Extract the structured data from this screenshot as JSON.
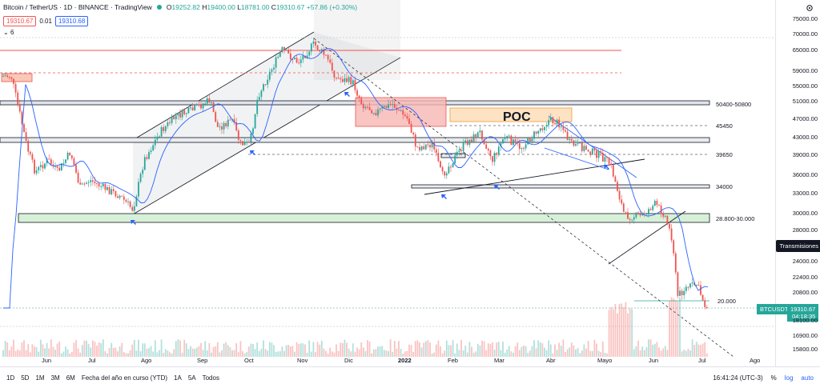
{
  "header": {
    "title": "Bitcoin / TetherUS · 1D · BINANCE · TradingView",
    "open_label": "O",
    "open": "19252.82",
    "high_label": "H",
    "high": "19400.00",
    "low_label": "L",
    "low": "18781.00",
    "close_label": "C",
    "close": "19310.67",
    "change": "+57.86 (+0.30%)"
  },
  "trade": {
    "sell_price": "19310.67",
    "spread": "0.01",
    "buy_price": "19310.68"
  },
  "indicator_toggle": "6",
  "price_axis": {
    "ticks": [
      "75000.00",
      "70000.00",
      "65000.00",
      "59000.00",
      "55000.00",
      "51000.00",
      "47000.00",
      "43000.00",
      "39000.00",
      "36000.00",
      "33000.00",
      "30000.00",
      "28000.00",
      "24000.00",
      "22400.00",
      "20800.00",
      "18100.00",
      "16900.00",
      "15800.00"
    ],
    "symbol_tag": "BTCUSDT",
    "last_price": "19310.67",
    "countdown": "04:18:35",
    "hover_tag": "Transmisiones"
  },
  "time_axis": [
    "Jun",
    "Jul",
    "Ago",
    "Sep",
    "Oct",
    "Nov",
    "Dic",
    "2022",
    "Feb",
    "Mar",
    "Abr",
    "Mayo",
    "Jun",
    "Jul",
    "Ago",
    "Sep"
  ],
  "annotations": {
    "levels": [
      "50400-50800",
      "45450",
      "39650",
      "34000",
      "28.800-30.000",
      "20.000"
    ],
    "poc": "POC"
  },
  "ranges": [
    "1D",
    "5D",
    "1M",
    "3M",
    "6M",
    "Fecha del año en curso (YTD)",
    "1A",
    "5A",
    "Todos"
  ],
  "bottom_right": {
    "clock": "16:41:24 (UTC-3)",
    "percent": "%",
    "log": "log",
    "auto": "auto"
  },
  "colors": {
    "up": "#26a69a",
    "down": "#ef5350",
    "ma": "#2962ff",
    "accent": "#2962ff"
  }
}
